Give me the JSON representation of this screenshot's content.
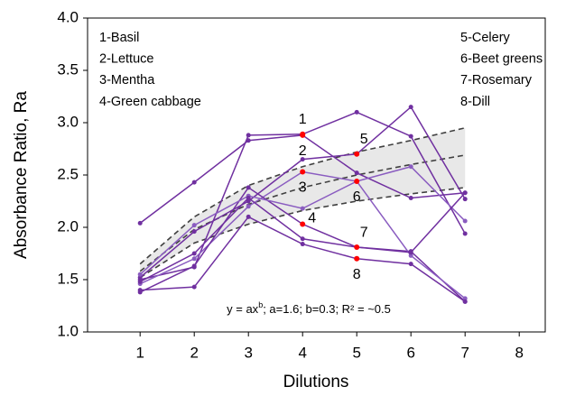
{
  "chart_data": {
    "type": "line",
    "x_label": "Dilutions",
    "y_label": "Absorbance Ratio, Ra",
    "x": [
      1,
      2,
      3,
      4,
      5,
      6,
      7
    ],
    "xlim": [
      0.03,
      8.48
    ],
    "xticks": [
      1,
      2,
      3,
      4,
      5,
      6,
      7,
      8
    ],
    "ylim": [
      1,
      4
    ],
    "yticks": [
      {
        "value": 1,
        "label": "1.0"
      },
      1.5,
      {
        "value": 2,
        "label": "2.0"
      },
      2.5,
      {
        "value": 3,
        "label": "3.0"
      },
      3.5,
      {
        "value": 4,
        "label": "4.0"
      }
    ],
    "highlight_color": "#ff0000",
    "series": [
      {
        "name": "1-Basil",
        "color": "#7030a0",
        "values": [
          1.5,
          1.62,
          2.88,
          2.89,
          3.1,
          2.87,
          1.94
        ],
        "highlight_index": 3,
        "point_label": "1",
        "label_pos": "above"
      },
      {
        "name": "2-Lettuce",
        "color": "#7030a0",
        "values": [
          2.04,
          2.43,
          2.83,
          2.88,
          2.52,
          2.28,
          2.33
        ],
        "highlight_index": 3,
        "point_label": "2",
        "label_pos": "below"
      },
      {
        "name": "3-Mentha",
        "color": "#8a5cc0",
        "values": [
          1.46,
          1.7,
          2.2,
          2.53,
          2.44,
          2.58,
          2.06
        ],
        "highlight_index": 3,
        "point_label": "3",
        "label_pos": "below"
      },
      {
        "name": "4-Green cabbage",
        "color": "#7030a0",
        "values": [
          1.38,
          1.63,
          2.38,
          2.03,
          1.81,
          1.77,
          1.29
        ],
        "highlight_index": 3,
        "point_label": "4",
        "label_pos": "right"
      },
      {
        "name": "5-Celery",
        "color": "#7030a0",
        "values": [
          1.52,
          1.96,
          2.25,
          2.65,
          2.7,
          3.15,
          2.27
        ],
        "highlight_index": 4,
        "point_label": "5",
        "label_pos": "above"
      },
      {
        "name": "6-Beet greens",
        "color": "#8a5cc0",
        "values": [
          1.55,
          2.02,
          2.3,
          2.18,
          2.44,
          1.73,
          1.32
        ],
        "highlight_index": 4,
        "point_label": "6",
        "label_pos": "below"
      },
      {
        "name": "7-Rosemary",
        "color": "#7030a0",
        "values": [
          1.48,
          1.75,
          2.28,
          1.89,
          1.81,
          1.76,
          2.33
        ],
        "highlight_index": 4,
        "point_label": "7",
        "label_pos": "above"
      },
      {
        "name": "8-Dill",
        "color": "#7030a0",
        "values": [
          1.4,
          1.43,
          2.1,
          1.84,
          1.7,
          1.65,
          1.29
        ],
        "highlight_index": 4,
        "point_label": "8",
        "label_pos": "below"
      }
    ],
    "fit": {
      "label_parts": [
        "y = ax",
        "b",
        "; a=1.6; b=0.3; R² = ~0.5"
      ],
      "x": [
        1,
        2,
        3,
        4,
        5,
        6,
        7
      ],
      "center": [
        1.58,
        1.98,
        2.22,
        2.38,
        2.5,
        2.6,
        2.69
      ],
      "upper": [
        1.65,
        2.1,
        2.4,
        2.58,
        2.72,
        2.83,
        2.95
      ],
      "lower": [
        1.52,
        1.85,
        2.03,
        2.16,
        2.25,
        2.32,
        2.38
      ],
      "band_color": "#e8e8e8",
      "line_color": "#404040"
    }
  }
}
